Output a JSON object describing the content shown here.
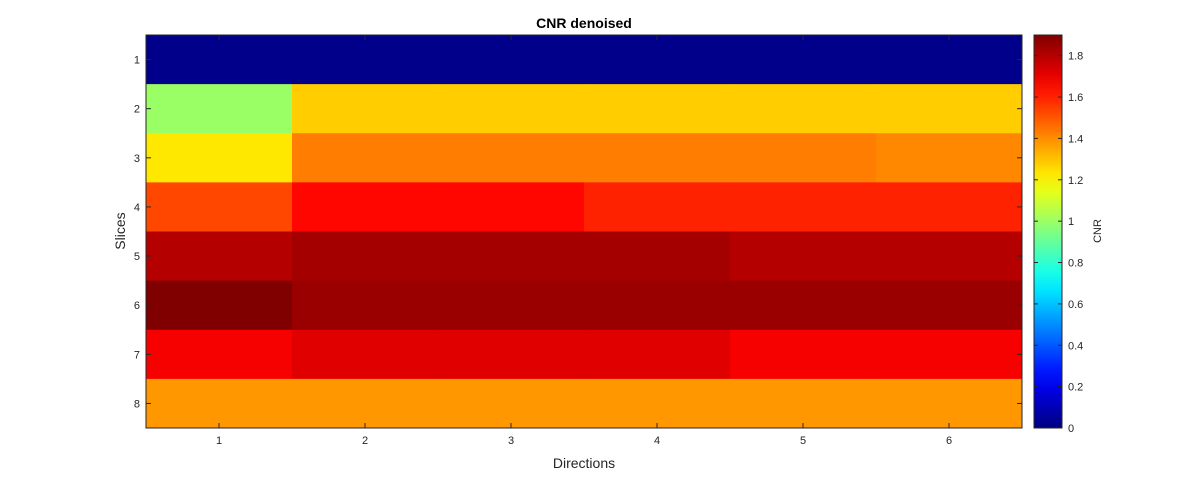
{
  "chart_data": {
    "type": "heatmap",
    "title": "CNR denoised",
    "xlabel": "Directions",
    "ylabel": "Slices",
    "colorbar_label": "CNR",
    "colormap": "jet",
    "x_categories": [
      "1",
      "2",
      "3",
      "4",
      "5",
      "6"
    ],
    "y_categories": [
      "1",
      "2",
      "3",
      "4",
      "5",
      "6",
      "7",
      "8"
    ],
    "clim": [
      0,
      1.9
    ],
    "colorbar_ticks": [
      "0",
      "0.2",
      "0.4",
      "0.6",
      "0.8",
      "1",
      "1.2",
      "1.4",
      "1.6",
      "1.8"
    ],
    "values": [
      [
        0.02,
        0.02,
        0.02,
        0.02,
        0.02,
        0.02
      ],
      [
        1.0,
        1.28,
        1.28,
        1.28,
        1.28,
        1.28
      ],
      [
        1.23,
        1.43,
        1.43,
        1.43,
        1.43,
        1.41
      ],
      [
        1.53,
        1.65,
        1.65,
        1.6,
        1.6,
        1.6
      ],
      [
        1.8,
        1.83,
        1.83,
        1.83,
        1.8,
        1.8
      ],
      [
        1.9,
        1.85,
        1.85,
        1.85,
        1.85,
        1.85
      ],
      [
        1.68,
        1.72,
        1.72,
        1.72,
        1.68,
        1.68
      ],
      [
        1.38,
        1.38,
        1.38,
        1.38,
        1.38,
        1.38
      ]
    ]
  }
}
